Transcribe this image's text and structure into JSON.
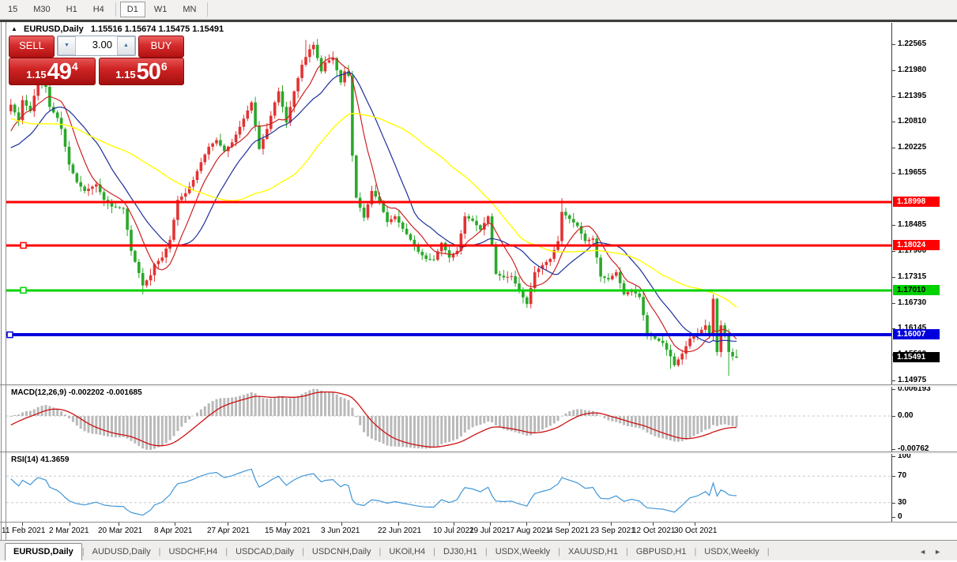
{
  "toolbar": {
    "timeframes": [
      {
        "label": "15",
        "active": false
      },
      {
        "label": "M30",
        "active": false
      },
      {
        "label": "H1",
        "active": false
      },
      {
        "label": "H4",
        "active": false
      },
      {
        "label": "D1",
        "active": true
      },
      {
        "label": "W1",
        "active": false
      },
      {
        "label": "MN",
        "active": false
      }
    ]
  },
  "chart": {
    "collapse_icon": "▲",
    "title_symbol": "EURUSD,Daily",
    "title_ohlc": "1.15516 1.15674 1.15475 1.15491"
  },
  "trade_panel": {
    "sell_label": "SELL",
    "buy_label": "BUY",
    "volume": "3.00",
    "spin_down_icon": "▼",
    "spin_up_icon": "▲",
    "sell_price": {
      "prefix": "1.15",
      "big": "49",
      "sup": "4"
    },
    "buy_price": {
      "prefix": "1.15",
      "big": "50",
      "sup": "6"
    }
  },
  "chart_data": {
    "type": "candlestick",
    "instrument": "EURUSD",
    "timeframe": "Daily",
    "last_ohlc": {
      "open": 1.15516,
      "high": 1.15674,
      "low": 1.15475,
      "close": 1.15491
    },
    "y_axis_ticks": [
      "1.22565",
      "1.21980",
      "1.21395",
      "1.20810",
      "1.20225",
      "1.19655",
      "1.18485",
      "1.17900",
      "1.17315",
      "1.16730",
      "1.16145",
      "1.15560",
      "1.14975"
    ],
    "x_axis_labels": [
      "11 Feb 2021",
      "2 Mar 2021",
      "20 Mar 2021",
      "8 Apr 2021",
      "27 Apr 2021",
      "15 May 2021",
      "3 Jun 2021",
      "22 Jun 2021",
      "10 Jul 2021",
      "29 Jul 2021",
      "17 Aug 2021",
      "4 Sep 2021",
      "23 Sep 2021",
      "12 Oct 2021",
      "30 Oct 2021"
    ],
    "horizontal_lines": [
      {
        "price": 1.18998,
        "label": "1.18998",
        "color": "#ff0000",
        "text_color": "#ffffff",
        "thickness": 3,
        "marker": false
      },
      {
        "price": 1.18024,
        "label": "1.18024",
        "color": "#ff0000",
        "text_color": "#ffffff",
        "thickness": 3,
        "marker": true
      },
      {
        "price": 1.1701,
        "label": "1.17010",
        "color": "#00d200",
        "text_color": "#000000",
        "thickness": 3,
        "marker": true
      },
      {
        "price": 1.16007,
        "label": "1.16007",
        "color": "#0000dc",
        "text_color": "#ffffff",
        "thickness": 4,
        "marker": true
      }
    ],
    "current_price_label": {
      "text": "1.15491",
      "bg": "#000000",
      "color": "#ffffff",
      "price": 1.15491
    },
    "candles": {
      "count": 188,
      "up_color": "#e23333",
      "down_color": "#2aa82a",
      "prehistory_keypoints": [
        [
          -55,
          1.215
        ],
        [
          -45,
          1.225
        ],
        [
          -38,
          1.218
        ],
        [
          -30,
          1.208
        ],
        [
          -24,
          1.214
        ],
        [
          -18,
          1.206
        ],
        [
          -12,
          1.198
        ],
        [
          -8,
          1.196
        ],
        [
          -5,
          1.204
        ],
        [
          -2,
          1.209
        ]
      ],
      "close_keypoints": [
        [
          0,
          1.212
        ],
        [
          2,
          1.2085
        ],
        [
          3,
          1.213
        ],
        [
          5,
          1.2105
        ],
        [
          7,
          1.2175
        ],
        [
          9,
          1.216
        ],
        [
          10,
          1.2115
        ],
        [
          12,
          1.209
        ],
        [
          13,
          1.2065
        ],
        [
          15,
          1.1985
        ],
        [
          17,
          1.1945
        ],
        [
          19,
          1.1925
        ],
        [
          22,
          1.194
        ],
        [
          24,
          1.1905
        ],
        [
          26,
          1.189
        ],
        [
          29,
          1.1885
        ],
        [
          31,
          1.179
        ],
        [
          33,
          1.174
        ],
        [
          34,
          1.1712
        ],
        [
          36,
          1.1735
        ],
        [
          37,
          1.176
        ],
        [
          39,
          1.1775
        ],
        [
          41,
          1.1815
        ],
        [
          43,
          1.1905
        ],
        [
          45,
          1.192
        ],
        [
          47,
          1.195
        ],
        [
          49,
          1.199
        ],
        [
          51,
          1.2025
        ],
        [
          53,
          1.204
        ],
        [
          55,
          1.2015
        ],
        [
          57,
          1.2035
        ],
        [
          59,
          1.207
        ],
        [
          62,
          1.2125
        ],
        [
          64,
          1.202
        ],
        [
          66,
          1.2065
        ],
        [
          68,
          1.2125
        ],
        [
          69,
          1.215
        ],
        [
          71,
          1.208
        ],
        [
          73,
          1.215
        ],
        [
          75,
          1.221
        ],
        [
          77,
          1.2245
        ],
        [
          78,
          1.2255
        ],
        [
          80,
          1.2195
        ],
        [
          81,
          1.2215
        ],
        [
          83,
          1.2225
        ],
        [
          85,
          1.217
        ],
        [
          86,
          1.2195
        ],
        [
          87,
          1.2185
        ],
        [
          88,
          1.2005
        ],
        [
          89,
          1.191
        ],
        [
          91,
          1.1865
        ],
        [
          93,
          1.1925
        ],
        [
          95,
          1.19
        ],
        [
          97,
          1.1855
        ],
        [
          99,
          1.1868
        ],
        [
          101,
          1.184
        ],
        [
          103,
          1.1815
        ],
        [
          105,
          1.1788
        ],
        [
          107,
          1.1772
        ],
        [
          109,
          1.177
        ],
        [
          111,
          1.1808
        ],
        [
          113,
          1.1775
        ],
        [
          115,
          1.179
        ],
        [
          117,
          1.1868
        ],
        [
          119,
          1.1858
        ],
        [
          121,
          1.1838
        ],
        [
          123,
          1.1868
        ],
        [
          125,
          1.1738
        ],
        [
          127,
          1.173
        ],
        [
          129,
          1.1733
        ],
        [
          131,
          1.17
        ],
        [
          133,
          1.167
        ],
        [
          135,
          1.1742
        ],
        [
          137,
          1.1758
        ],
        [
          139,
          1.1772
        ],
        [
          141,
          1.1812
        ],
        [
          142,
          1.1878
        ],
        [
          144,
          1.1862
        ],
        [
          146,
          1.1846
        ],
        [
          148,
          1.1812
        ],
        [
          150,
          1.1818
        ],
        [
          152,
          1.1732
        ],
        [
          154,
          1.1726
        ],
        [
          156,
          1.1742
        ],
        [
          158,
          1.1692
        ],
        [
          160,
          1.1702
        ],
        [
          162,
          1.1686
        ],
        [
          164,
          1.1604
        ],
        [
          166,
          1.1592
        ],
        [
          168,
          1.1582
        ],
        [
          170,
          1.1552
        ],
        [
          171,
          1.1532
        ],
        [
          173,
          1.1558
        ],
        [
          175,
          1.1592
        ],
        [
          177,
          1.1602
        ],
        [
          179,
          1.1622
        ],
        [
          180,
          1.1598
        ],
        [
          181,
          1.1682
        ],
        [
          182,
          1.1562
        ],
        [
          183,
          1.1622
        ],
        [
          184,
          1.1602
        ],
        [
          185,
          1.1562
        ],
        [
          186,
          1.1552
        ],
        [
          187,
          1.15491
        ]
      ],
      "wick_overrides": {
        "34": {
          "low": 1.1692
        },
        "76": {
          "high": 1.2266
        },
        "78": {
          "high": 1.2262
        },
        "142": {
          "high": 1.1909
        },
        "170": {
          "low": 1.1524
        },
        "181": {
          "high": 1.1692
        },
        "185": {
          "low": 1.1508
        },
        "187": {
          "open": 1.15516,
          "high": 1.15674,
          "low": 1.15475,
          "close": 1.15491
        }
      }
    },
    "moving_averages": [
      {
        "name": "ma-fast",
        "period": 8,
        "color": "#cc2222"
      },
      {
        "name": "ma-medium",
        "period": 17,
        "color": "#1c2f9c"
      },
      {
        "name": "ma-slow",
        "period": 44,
        "color": "#ffff00"
      }
    ],
    "macd": {
      "label": "MACD(12,26,9) -0.002202 -0.001685",
      "fast": 12,
      "slow": 26,
      "signal": 9,
      "value": -0.002202,
      "signal_value": -0.001685,
      "axis_labels": [
        "0.006193",
        "0.00",
        "-0.00762"
      ],
      "axis_values": [
        0.006193,
        0,
        -0.00762
      ],
      "histogram_color": "#b9b9b9",
      "signal_color": "#cc1111"
    },
    "rsi": {
      "label": "RSI(14) 41.3659",
      "period": 14,
      "value": 41.3659,
      "axis_labels": [
        "100",
        "70",
        "30",
        "0"
      ],
      "axis_values": [
        100,
        70,
        30,
        0
      ],
      "levels": [
        70,
        30
      ],
      "color": "#3f96d9",
      "level_color": "#c8c8c8"
    }
  },
  "tabs": {
    "items": [
      {
        "label": "EURUSD,Daily",
        "active": true
      },
      {
        "label": "AUDUSD,Daily",
        "active": false
      },
      {
        "label": "USDCHF,H4",
        "active": false
      },
      {
        "label": "USDCAD,Daily",
        "active": false
      },
      {
        "label": "USDCNH,Daily",
        "active": false
      },
      {
        "label": "UKOil,H4",
        "active": false
      },
      {
        "label": "DJ30,H1",
        "active": false
      },
      {
        "label": "USDX,Weekly",
        "active": false
      },
      {
        "label": "XAUUSD,H1",
        "active": false
      },
      {
        "label": "GBPUSD,H1",
        "active": false
      },
      {
        "label": "USDX,Weekly",
        "active": false
      }
    ],
    "scroll_left_icon": "◄",
    "scroll_right_icon": "►"
  }
}
